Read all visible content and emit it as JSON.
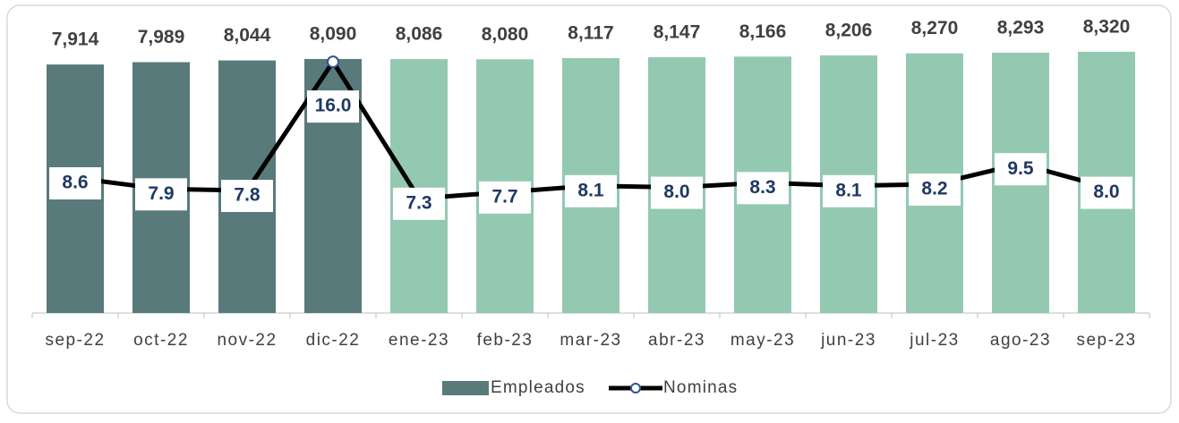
{
  "chart_data": {
    "type": "bar-line",
    "categories": [
      "sep-22",
      "oct-22",
      "nov-22",
      "dic-22",
      "ene-23",
      "feb-23",
      "mar-23",
      "abr-23",
      "may-23",
      "jun-23",
      "jul-23",
      "ago-23",
      "sep-23"
    ],
    "series": [
      {
        "name": "Empleados",
        "type": "bar",
        "color": "#587a7b",
        "colors": [
          "#587a7b",
          "#587a7b",
          "#587a7b",
          "#587a7b",
          "#94c9b1",
          "#94c9b1",
          "#94c9b1",
          "#94c9b1",
          "#94c9b1",
          "#94c9b1",
          "#94c9b1",
          "#94c9b1",
          "#94c9b1"
        ],
        "values": [
          7914,
          7989,
          8044,
          8090,
          8086,
          8080,
          8117,
          8147,
          8166,
          8206,
          8270,
          8293,
          8320
        ],
        "value_labels": [
          "7,914",
          "7,989",
          "8,044",
          "8,090",
          "8,086",
          "8,080",
          "8,117",
          "8,147",
          "8,166",
          "8,206",
          "8,270",
          "8,293",
          "8,320"
        ]
      },
      {
        "name": "Nominas",
        "type": "line",
        "axis": "y2",
        "color": "#000000",
        "values": [
          8.6,
          7.9,
          7.8,
          16.0,
          7.3,
          7.7,
          8.1,
          8.0,
          8.3,
          8.1,
          8.2,
          9.5,
          8.0
        ],
        "value_labels": [
          "8.6",
          "7.9",
          "7.8",
          "16.0",
          "7.3",
          "7.7",
          "8.1",
          "8.0",
          "8.3",
          "8.1",
          "8.2",
          "9.5",
          "8.0"
        ]
      }
    ],
    "ylim": [
      0,
      9000
    ],
    "y2lim": [
      0,
      18
    ],
    "legend": "bottom"
  }
}
